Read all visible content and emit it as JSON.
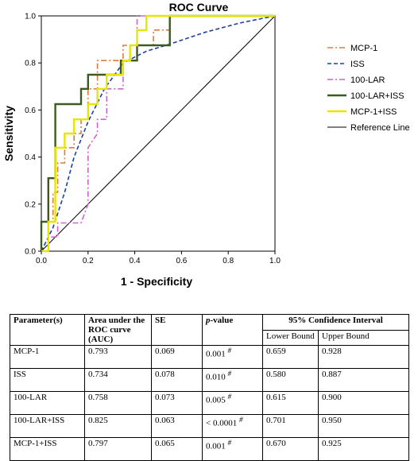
{
  "chart_data": {
    "type": "line",
    "title": "ROC Curve",
    "xlabel": "1 - Specificity",
    "ylabel": "Sensitivity",
    "xlim": [
      0.0,
      1.0
    ],
    "ylim": [
      0.0,
      1.0
    ],
    "xticks": [
      "0.0",
      "0.2",
      "0.4",
      "0.6",
      "0.8",
      "1.0"
    ],
    "yticks": [
      "0.0",
      "0.2",
      "0.4",
      "0.6",
      "0.8",
      "1.0"
    ],
    "grid": false,
    "legend_position": "right",
    "series": [
      {
        "name": "MCP-1",
        "color": "#e07b39",
        "dash": "dashdot",
        "points": [
          [
            0,
            0
          ],
          [
            0.03,
            0
          ],
          [
            0.03,
            0.125
          ],
          [
            0.05,
            0.125
          ],
          [
            0.05,
            0.25
          ],
          [
            0.07,
            0.25
          ],
          [
            0.07,
            0.375
          ],
          [
            0.1,
            0.375
          ],
          [
            0.1,
            0.44
          ],
          [
            0.14,
            0.44
          ],
          [
            0.14,
            0.5
          ],
          [
            0.17,
            0.5
          ],
          [
            0.17,
            0.56
          ],
          [
            0.2,
            0.56
          ],
          [
            0.2,
            0.69
          ],
          [
            0.24,
            0.69
          ],
          [
            0.24,
            0.81
          ],
          [
            0.35,
            0.81
          ],
          [
            0.35,
            0.875
          ],
          [
            0.48,
            0.875
          ],
          [
            0.48,
            0.94
          ],
          [
            0.55,
            0.94
          ],
          [
            0.55,
            1.0
          ],
          [
            1,
            1
          ]
        ]
      },
      {
        "name": "ISS",
        "color": "#1f3f9f",
        "dash": "dash",
        "points": [
          [
            0,
            0
          ],
          [
            0.05,
            0.1
          ],
          [
            0.1,
            0.25
          ],
          [
            0.14,
            0.4
          ],
          [
            0.2,
            0.55
          ],
          [
            0.27,
            0.69
          ],
          [
            0.35,
            0.8
          ],
          [
            0.45,
            0.85
          ],
          [
            0.55,
            0.88
          ],
          [
            0.7,
            0.93
          ],
          [
            0.85,
            0.97
          ],
          [
            1,
            1
          ]
        ]
      },
      {
        "name": "100-LAR",
        "color": "#cc66cc",
        "dash": "dashdot",
        "points": [
          [
            0,
            0
          ],
          [
            0.03,
            0
          ],
          [
            0.03,
            0.06
          ],
          [
            0.07,
            0.06
          ],
          [
            0.07,
            0.12
          ],
          [
            0.17,
            0.12
          ],
          [
            0.2,
            0.2
          ],
          [
            0.2,
            0.44
          ],
          [
            0.24,
            0.5
          ],
          [
            0.24,
            0.56
          ],
          [
            0.28,
            0.56
          ],
          [
            0.28,
            0.69
          ],
          [
            0.35,
            0.69
          ],
          [
            0.35,
            0.81
          ],
          [
            0.38,
            0.81
          ],
          [
            0.38,
            0.875
          ],
          [
            0.41,
            0.875
          ],
          [
            0.41,
            1.0
          ],
          [
            1,
            1
          ]
        ]
      },
      {
        "name": "100-LAR+ISS",
        "color": "#3d5a23",
        "dash": "solid",
        "points": [
          [
            0,
            0
          ],
          [
            0,
            0.125
          ],
          [
            0.03,
            0.125
          ],
          [
            0.03,
            0.31
          ],
          [
            0.06,
            0.31
          ],
          [
            0.06,
            0.625
          ],
          [
            0.17,
            0.625
          ],
          [
            0.17,
            0.69
          ],
          [
            0.2,
            0.69
          ],
          [
            0.2,
            0.75
          ],
          [
            0.34,
            0.75
          ],
          [
            0.34,
            0.81
          ],
          [
            0.41,
            0.81
          ],
          [
            0.41,
            0.875
          ],
          [
            0.55,
            0.875
          ],
          [
            0.55,
            1.0
          ],
          [
            1,
            1
          ]
        ]
      },
      {
        "name": "MCP-1+ISS",
        "color": "#e6e600",
        "dash": "solid",
        "points": [
          [
            0,
            0
          ],
          [
            0.03,
            0
          ],
          [
            0.03,
            0.125
          ],
          [
            0.06,
            0.125
          ],
          [
            0.06,
            0.44
          ],
          [
            0.1,
            0.44
          ],
          [
            0.1,
            0.5
          ],
          [
            0.14,
            0.5
          ],
          [
            0.14,
            0.56
          ],
          [
            0.2,
            0.56
          ],
          [
            0.2,
            0.625
          ],
          [
            0.24,
            0.625
          ],
          [
            0.24,
            0.69
          ],
          [
            0.28,
            0.69
          ],
          [
            0.28,
            0.75
          ],
          [
            0.35,
            0.75
          ],
          [
            0.35,
            0.81
          ],
          [
            0.38,
            0.81
          ],
          [
            0.38,
            0.875
          ],
          [
            0.41,
            0.875
          ],
          [
            0.41,
            0.94
          ],
          [
            0.45,
            0.94
          ],
          [
            0.45,
            1.0
          ],
          [
            1,
            1
          ]
        ]
      },
      {
        "name": "Reference Line",
        "color": "#000000",
        "dash": "solid",
        "points": [
          [
            0,
            0
          ],
          [
            1,
            1
          ]
        ]
      }
    ]
  },
  "table": {
    "headers": {
      "parameter": "Parameter(s)",
      "auc": "Area under the ROC curve (AUC)",
      "se": "SE",
      "p_italic": "p",
      "p_rest": "-value",
      "ci": "95% Confidence Interval",
      "lower": "Lower Bound",
      "upper": "Upper Bound"
    },
    "rows": [
      {
        "parameter": "MCP-1",
        "auc": "0.793",
        "se": "0.069",
        "p": "0.001",
        "mark": "#",
        "lower": "0.659",
        "upper": "0.928"
      },
      {
        "parameter": "ISS",
        "auc": "0.734",
        "se": "0.078",
        "p": "0.010",
        "mark": "#",
        "lower": "0.580",
        "upper": "0.887"
      },
      {
        "parameter": "100-LAR",
        "auc": "0.758",
        "se": "0.073",
        "p": "0.005",
        "mark": "#",
        "lower": "0.615",
        "upper": "0.900"
      },
      {
        "parameter": "100-LAR+ISS",
        "auc": "0.825",
        "se": "0.063",
        "p": "< 0.0001",
        "mark": "#",
        "lower": "0.701",
        "upper": "0.950"
      },
      {
        "parameter": "MCP-1+ISS",
        "auc": "0.797",
        "se": "0.065",
        "p": "0.001",
        "mark": "#",
        "lower": "0.670",
        "upper": "0.925"
      }
    ]
  }
}
